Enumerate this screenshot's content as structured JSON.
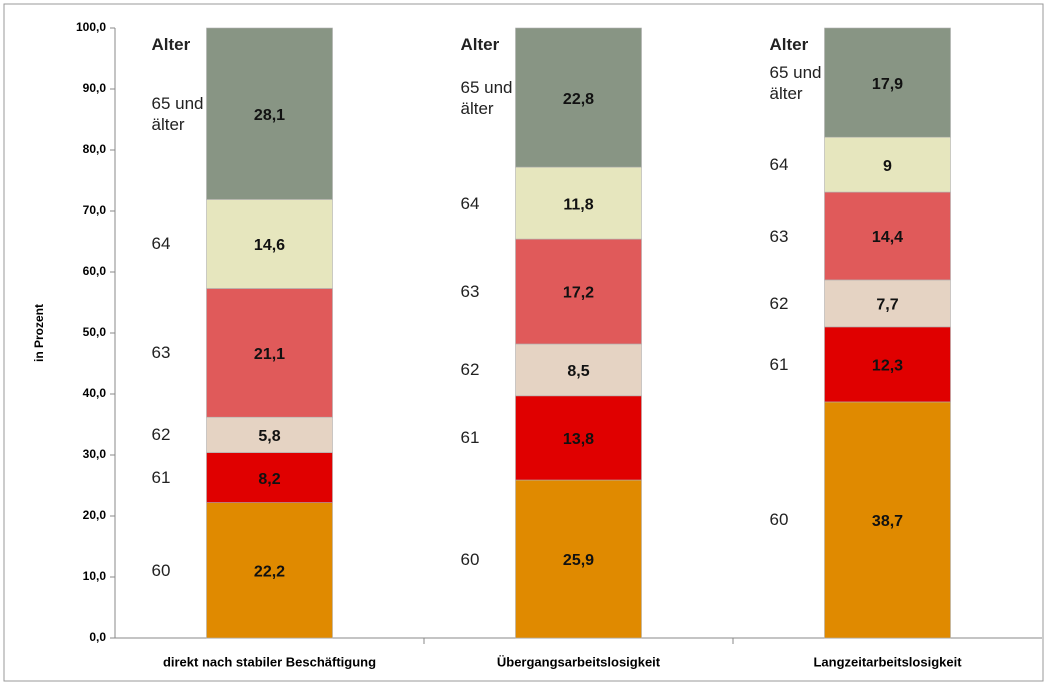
{
  "chart_data": {
    "type": "stacked_bar",
    "ylabel": "in Prozent",
    "legend_title": "Alter",
    "categories": [
      "direkt nach stabiler Beschäftigung",
      "Übergangsarbeitslosigkeit",
      "Langzeitarbeitslosigkeit"
    ],
    "series": [
      {
        "name": "60",
        "color": "#e08a00",
        "values": [
          22.2,
          25.9,
          38.7
        ],
        "value_labels": [
          "22,2",
          "25,9",
          "38,7"
        ]
      },
      {
        "name": "61",
        "color": "#e00000",
        "values": [
          8.2,
          13.8,
          12.3
        ],
        "value_labels": [
          "8,2",
          "13,8",
          "12,3"
        ]
      },
      {
        "name": "62",
        "color": "#e5d3c3",
        "values": [
          5.8,
          8.5,
          7.7
        ],
        "value_labels": [
          "5,8",
          "8,5",
          "7,7"
        ]
      },
      {
        "name": "63",
        "color": "#e05a5a",
        "values": [
          21.1,
          17.2,
          14.4
        ],
        "value_labels": [
          "21,1",
          "17,2",
          "14,4"
        ]
      },
      {
        "name": "64",
        "color": "#e6e6be",
        "values": [
          14.6,
          11.8,
          9
        ],
        "value_labels": [
          "14,6",
          "11,8",
          "9"
        ]
      },
      {
        "name": "65 und älter",
        "color": "#889584",
        "values": [
          28.1,
          22.8,
          17.9
        ],
        "value_labels": [
          "28,1",
          "22,8",
          "17,9"
        ]
      }
    ],
    "ylim": [
      0,
      100
    ],
    "yticks": [
      {
        "value": 0,
        "label": "0,0"
      },
      {
        "value": 10,
        "label": "10,0"
      },
      {
        "value": 20,
        "label": "20,0"
      },
      {
        "value": 30,
        "label": "30,0"
      },
      {
        "value": 40,
        "label": "40,0"
      },
      {
        "value": 50,
        "label": "50,0"
      },
      {
        "value": 60,
        "label": "60,0"
      },
      {
        "value": 70,
        "label": "70,0"
      },
      {
        "value": 80,
        "label": "80,0"
      },
      {
        "value": 90,
        "label": "90,0"
      },
      {
        "value": 100,
        "label": "100,0"
      }
    ],
    "grid": false
  }
}
